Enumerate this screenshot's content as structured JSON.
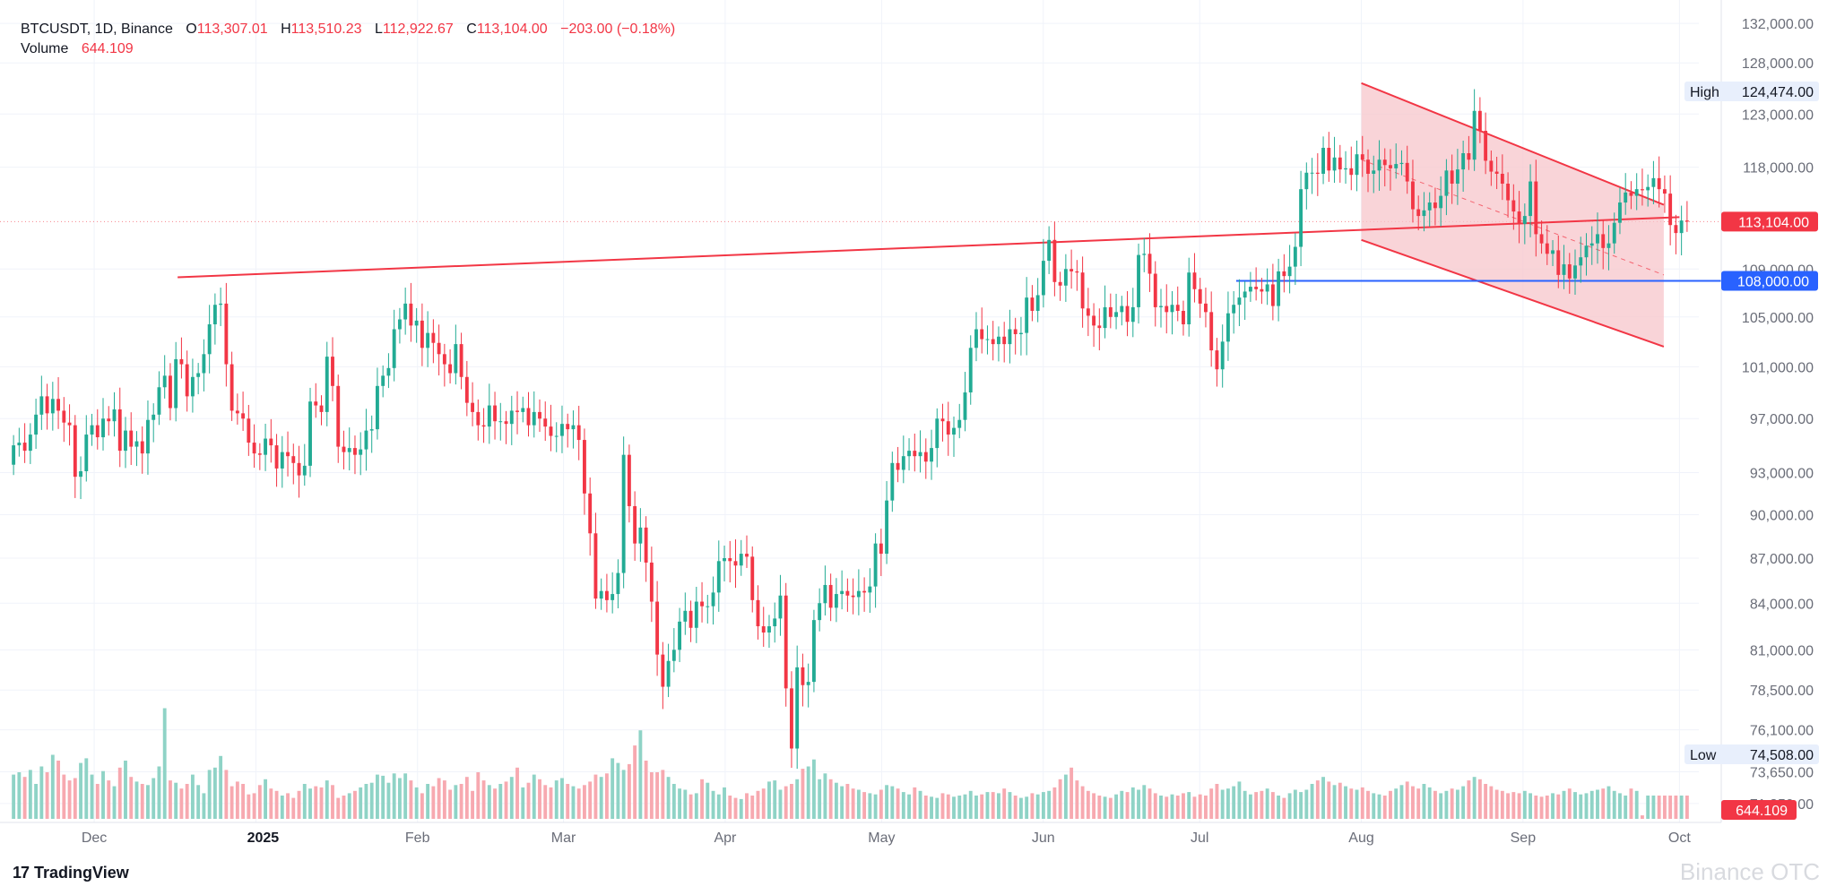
{
  "header": {
    "symbol": "BTCUSDT, 1D, Binance",
    "open_label": "O",
    "open": "113,307.01",
    "high_label": "H",
    "high": "113,510.23",
    "low_label": "L",
    "low": "112,922.67",
    "close_label": "C",
    "close": "113,104.00",
    "change": "−203.00 (−0.18%)",
    "volume_label": "Volume",
    "volume": "644.109"
  },
  "branding": {
    "logo": "17",
    "name": "TradingView",
    "watermark": "Binance OTC"
  },
  "colors": {
    "up": "#22ab94",
    "down": "#f23645",
    "up_volume": "#8fd3c6",
    "down_volume": "#f7a9b0",
    "support_line": "#2962ff",
    "channel_fill": "#f7c6cb"
  },
  "chart_data": {
    "type": "candlestick",
    "symbol": "BTCUSDT",
    "interval": "1D",
    "exchange": "Binance",
    "y_axis": {
      "ticks": [
        "132,000.00",
        "128,000.00",
        "123,000.00",
        "118,000.00",
        "113,104.00",
        "109,000.00",
        "108,000.00",
        "105,000.00",
        "101,000.00",
        "97,000.00",
        "93,000.00",
        "90,000.00",
        "87,000.00",
        "84,000.00",
        "81,000.00",
        "78,500.00",
        "76,100.00",
        "74,508.00",
        "73,650.00",
        "71,850.00",
        "644.109"
      ],
      "tick_values": [
        132000,
        128000,
        123000,
        118000,
        109000,
        105000,
        101000,
        97000,
        93000,
        90000,
        87000,
        84000,
        81000,
        78500,
        76100,
        73650,
        71850
      ],
      "range": [
        70800,
        133500
      ],
      "scale": "log"
    },
    "x_axis": {
      "labels": [
        "Dec",
        "2025",
        "Feb",
        "Mar",
        "Apr",
        "May",
        "Jun",
        "Jul",
        "Aug",
        "Sep",
        "Oct"
      ],
      "range": [
        "2024-11-15",
        "2025-10-03"
      ]
    },
    "last_price": "113,104.00",
    "last_volume": "644.109",
    "high_marker": {
      "label": "High",
      "value": "124,474.00"
    },
    "low_marker": {
      "label": "Low",
      "value": "74,508.00"
    },
    "support_line": {
      "value": 108000,
      "label": "108,000.00",
      "from": "2025-07-08"
    },
    "trendline": {
      "points": [
        [
          "2024-12-17",
          108300
        ],
        [
          "2025-10-01",
          113500
        ]
      ]
    },
    "descending_channel": {
      "upper": [
        [
          "2025-08-01",
          126000
        ],
        [
          "2025-09-28",
          114600
        ]
      ],
      "lower": [
        [
          "2025-08-01",
          111500
        ],
        [
          "2025-09-28",
          102600
        ]
      ],
      "mid": [
        [
          "2025-08-01",
          118700
        ],
        [
          "2025-09-28",
          108500
        ]
      ]
    },
    "closes": [
      95000,
      95200,
      94600,
      95800,
      97300,
      98700,
      97400,
      98500,
      97600,
      96700,
      96500,
      92700,
      93100,
      95800,
      96500,
      95600,
      97000,
      96800,
      97700,
      94600,
      96100,
      94900,
      95300,
      94400,
      96900,
      97300,
      99400,
      100300,
      97800,
      101600,
      101200,
      98700,
      100200,
      100500,
      102000,
      104400,
      106000,
      106100,
      101200,
      97600,
      97400,
      97000,
      95200,
      94400,
      94300,
      95500,
      95000,
      93300,
      94500,
      94200,
      93700,
      92800,
      93500,
      98300,
      98000,
      97500,
      101800,
      99500,
      94900,
      94500,
      94800,
      94300,
      94700,
      96100,
      96200,
      99500,
      100300,
      100900,
      104000,
      104800,
      106100,
      104300,
      104700,
      102500,
      103700,
      102900,
      102000,
      101200,
      100500,
      102800,
      100200,
      98200,
      97500,
      96500,
      96400,
      98000,
      96800,
      96800,
      96600,
      97600,
      97500,
      97800,
      96500,
      97500,
      97000,
      96400,
      95700,
      95700,
      96600,
      96200,
      96500,
      95400,
      91500,
      88700,
      84300,
      84800,
      84200,
      84600,
      86000,
      94300,
      90600,
      88000,
      89100,
      86700,
      84100,
      80700,
      78700,
      80300,
      81000,
      82800,
      83500,
      82400,
      84100,
      83800,
      83800,
      84700,
      86800,
      87000,
      86800,
      86500,
      87300,
      87100,
      84200,
      82500,
      82100,
      82500,
      83000,
      84500,
      78600,
      75000,
      79900,
      78800,
      79000,
      82900,
      84000,
      85200,
      83700,
      84600,
      84800,
      84500,
      84400,
      84800,
      84700,
      85100,
      88000,
      87300,
      91000,
      93700,
      93200,
      94200,
      94600,
      94200,
      94500,
      93800,
      94800,
      97000,
      96800,
      95800,
      96300,
      96900,
      99000,
      102500,
      104000,
      103200,
      103200,
      102800,
      103400,
      102800,
      104000,
      103600,
      103700,
      106600,
      105500,
      106800,
      109700,
      111500,
      107900,
      107600,
      109000,
      108800,
      108700,
      105700,
      105100,
      104300,
      104100,
      105800,
      105000,
      105400,
      105900,
      104600,
      105800,
      110200,
      110300,
      108600,
      105800,
      105900,
      105400,
      106000,
      105500,
      104400,
      108700,
      107300,
      106100,
      105400,
      102300,
      100800,
      103000,
      105300,
      106000,
      106600,
      107100,
      107500,
      107300,
      107100,
      107700,
      105900,
      108800,
      108400,
      109200,
      110900,
      116000,
      117500,
      117500,
      117400,
      119800,
      117700,
      118900,
      117800,
      117900,
      117300,
      119200,
      118700,
      117400,
      117700,
      118700,
      118200,
      117900,
      118300,
      118400,
      116700,
      114200,
      113600,
      114100,
      114800,
      114300,
      115400,
      117700,
      116500,
      117800,
      119300,
      118700,
      123300,
      121400,
      118600,
      117600,
      117400,
      116500,
      115000,
      114000,
      112900,
      113600,
      116700,
      112000,
      111200,
      110300,
      110600,
      108500,
      109400,
      108200,
      109300,
      110000,
      111000,
      111200,
      112000,
      110800,
      111200,
      113000,
      114800,
      115700,
      115400,
      116000,
      115900,
      116200,
      117000,
      116000,
      115600,
      112800,
      112100,
      113200,
      113104
    ],
    "volume_scale": "relative 0-1",
    "volumes_relative": [
      0.38,
      0.4,
      0.36,
      0.42,
      0.3,
      0.45,
      0.4,
      0.55,
      0.5,
      0.38,
      0.33,
      0.35,
      0.48,
      0.52,
      0.38,
      0.3,
      0.41,
      0.33,
      0.28,
      0.44,
      0.5,
      0.36,
      0.32,
      0.3,
      0.29,
      0.35,
      0.45,
      0.95,
      0.33,
      0.31,
      0.26,
      0.3,
      0.38,
      0.29,
      0.22,
      0.42,
      0.44,
      0.54,
      0.42,
      0.28,
      0.32,
      0.3,
      0.21,
      0.22,
      0.29,
      0.34,
      0.26,
      0.24,
      0.2,
      0.22,
      0.18,
      0.24,
      0.3,
      0.26,
      0.28,
      0.27,
      0.33,
      0.29,
      0.18,
      0.2,
      0.22,
      0.24,
      0.27,
      0.3,
      0.31,
      0.38,
      0.37,
      0.31,
      0.39,
      0.35,
      0.39,
      0.33,
      0.27,
      0.22,
      0.3,
      0.28,
      0.35,
      0.33,
      0.25,
      0.29,
      0.3,
      0.36,
      0.24,
      0.4,
      0.33,
      0.29,
      0.26,
      0.3,
      0.32,
      0.36,
      0.44,
      0.27,
      0.31,
      0.38,
      0.34,
      0.29,
      0.27,
      0.33,
      0.35,
      0.3,
      0.28,
      0.26,
      0.29,
      0.32,
      0.38,
      0.36,
      0.39,
      0.52,
      0.48,
      0.42,
      0.47,
      0.63,
      0.76,
      0.5,
      0.4,
      0.4,
      0.42,
      0.36,
      0.3,
      0.26,
      0.25,
      0.21,
      0.22,
      0.34,
      0.31,
      0.24,
      0.21,
      0.27,
      0.2,
      0.18,
      0.17,
      0.22,
      0.2,
      0.24,
      0.26,
      0.32,
      0.33,
      0.25,
      0.28,
      0.3,
      0.34,
      0.43,
      0.45,
      0.51,
      0.34,
      0.39,
      0.34,
      0.31,
      0.28,
      0.3,
      0.26,
      0.25,
      0.23,
      0.22,
      0.21,
      0.25,
      0.29,
      0.28,
      0.26,
      0.23,
      0.21,
      0.27,
      0.24,
      0.2,
      0.19,
      0.18,
      0.22,
      0.21,
      0.19,
      0.2,
      0.21,
      0.24,
      0.2,
      0.21,
      0.23,
      0.23,
      0.22,
      0.26,
      0.23,
      0.2,
      0.18,
      0.19,
      0.22,
      0.21,
      0.23,
      0.24,
      0.27,
      0.34,
      0.38,
      0.44,
      0.33,
      0.28,
      0.24,
      0.22,
      0.2,
      0.19,
      0.18,
      0.21,
      0.24,
      0.23,
      0.27,
      0.25,
      0.29,
      0.26,
      0.22,
      0.2,
      0.19,
      0.21,
      0.2,
      0.22,
      0.23,
      0.19,
      0.21,
      0.2,
      0.26,
      0.3,
      0.25,
      0.26,
      0.28,
      0.32,
      0.24,
      0.21,
      0.23,
      0.24,
      0.26,
      0.23,
      0.2,
      0.18,
      0.22,
      0.25,
      0.23,
      0.25,
      0.3,
      0.33,
      0.36,
      0.32,
      0.29,
      0.31,
      0.28,
      0.26,
      0.25,
      0.27,
      0.24,
      0.22,
      0.21,
      0.2,
      0.24,
      0.26,
      0.29,
      0.32,
      0.28,
      0.26,
      0.3,
      0.27,
      0.24,
      0.22,
      0.24,
      0.26,
      0.25,
      0.28,
      0.33,
      0.36,
      0.34,
      0.3,
      0.28,
      0.25,
      0.24,
      0.22,
      0.23,
      0.22,
      0.24,
      0.22,
      0.2,
      0.19,
      0.2,
      0.22,
      0.21,
      0.24,
      0.26,
      0.23,
      0.21,
      0.22,
      0.24,
      0.25,
      0.26,
      0.28,
      0.24,
      0.22,
      0.2,
      0.26,
      0.24,
      0.03
    ]
  }
}
